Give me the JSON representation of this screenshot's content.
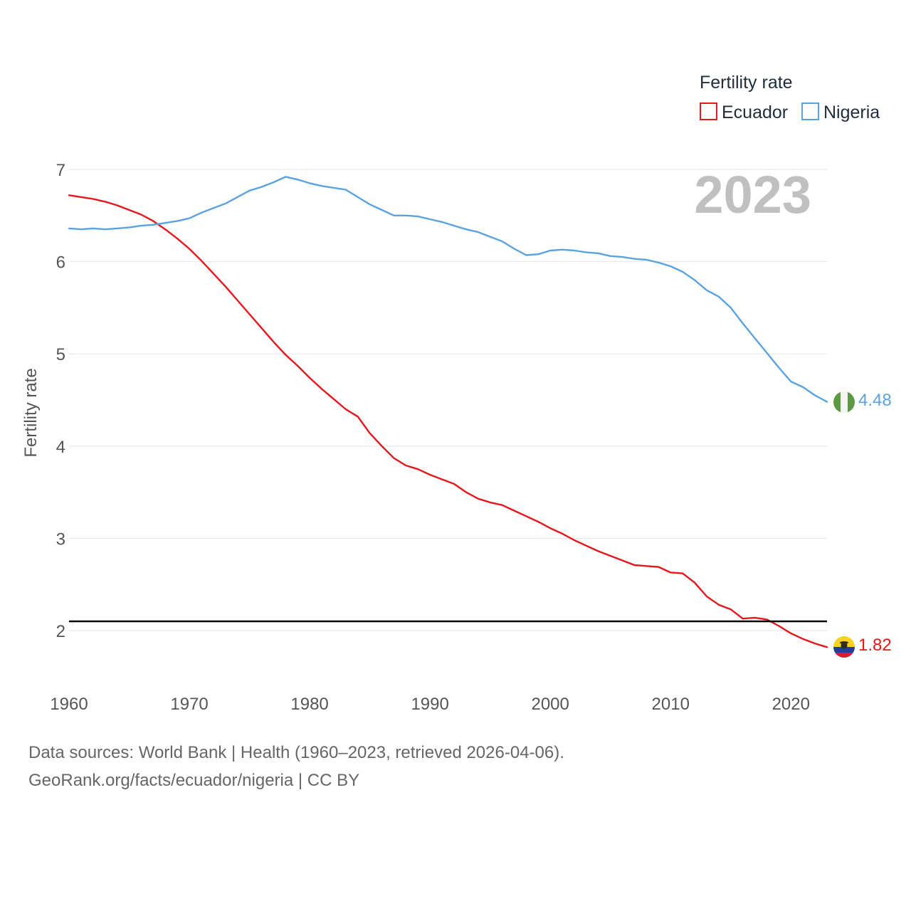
{
  "chart_data": {
    "type": "line",
    "ylabel": "Fertility rate",
    "xlabel": "",
    "legend": {
      "title": "Fertility rate",
      "position": "top-right"
    },
    "year_label": "2023",
    "xlim": [
      1960,
      2023
    ],
    "ylim": [
      1.4,
      7.0
    ],
    "x_ticks": [
      "1960",
      "1970",
      "1980",
      "1990",
      "2000",
      "2010",
      "2020"
    ],
    "y_ticks": [
      "2",
      "3",
      "4",
      "5",
      "6",
      "7"
    ],
    "reference_line": {
      "y": 2.1
    },
    "x": [
      1960,
      1961,
      1962,
      1963,
      1964,
      1965,
      1966,
      1967,
      1968,
      1969,
      1970,
      1971,
      1972,
      1973,
      1974,
      1975,
      1976,
      1977,
      1978,
      1979,
      1980,
      1981,
      1982,
      1983,
      1984,
      1985,
      1986,
      1987,
      1988,
      1989,
      1990,
      1991,
      1992,
      1993,
      1994,
      1995,
      1996,
      1997,
      1998,
      1999,
      2000,
      2001,
      2002,
      2003,
      2004,
      2005,
      2006,
      2007,
      2008,
      2009,
      2010,
      2011,
      2012,
      2013,
      2014,
      2015,
      2016,
      2017,
      2018,
      2019,
      2020,
      2021,
      2022,
      2023
    ],
    "series": [
      {
        "name": "Ecuador",
        "color": "#e8161b",
        "end_label": "1.82",
        "flag": "ecuador-flag-icon",
        "values": [
          6.72,
          6.7,
          6.68,
          6.65,
          6.61,
          6.56,
          6.51,
          6.44,
          6.35,
          6.25,
          6.14,
          6.01,
          5.87,
          5.73,
          5.58,
          5.43,
          5.28,
          5.13,
          4.99,
          4.87,
          4.74,
          4.62,
          4.51,
          4.4,
          4.32,
          4.14,
          4.0,
          3.87,
          3.79,
          3.75,
          3.69,
          3.64,
          3.59,
          3.5,
          3.43,
          3.39,
          3.36,
          3.3,
          3.24,
          3.18,
          3.11,
          3.05,
          2.98,
          2.92,
          2.86,
          2.81,
          2.76,
          2.71,
          2.7,
          2.69,
          2.63,
          2.62,
          2.52,
          2.37,
          2.28,
          2.23,
          2.13,
          2.14,
          2.12,
          2.05,
          1.97,
          1.91,
          1.86,
          1.82
        ]
      },
      {
        "name": "Nigeria",
        "color": "#5aa3e0",
        "end_label": "4.48",
        "flag": "nigeria-flag-icon",
        "values": [
          6.36,
          6.35,
          6.36,
          6.35,
          6.36,
          6.37,
          6.39,
          6.4,
          6.42,
          6.44,
          6.47,
          6.53,
          6.58,
          6.63,
          6.7,
          6.77,
          6.81,
          6.86,
          6.92,
          6.89,
          6.85,
          6.82,
          6.8,
          6.78,
          6.7,
          6.62,
          6.56,
          6.5,
          6.5,
          6.49,
          6.46,
          6.43,
          6.39,
          6.35,
          6.32,
          6.27,
          6.22,
          6.14,
          6.07,
          6.08,
          6.12,
          6.13,
          6.12,
          6.1,
          6.09,
          6.06,
          6.05,
          6.03,
          6.02,
          5.99,
          5.95,
          5.89,
          5.8,
          5.69,
          5.62,
          5.5,
          5.33,
          5.17,
          5.01,
          4.85,
          4.7,
          4.64,
          4.55,
          4.48
        ]
      }
    ]
  },
  "footer": {
    "line1": "Data sources: World Bank | Health (1960–2023, retrieved 2026-04-06).",
    "line2": "GeoRank.org/facts/ecuador/nigeria | CC BY"
  }
}
